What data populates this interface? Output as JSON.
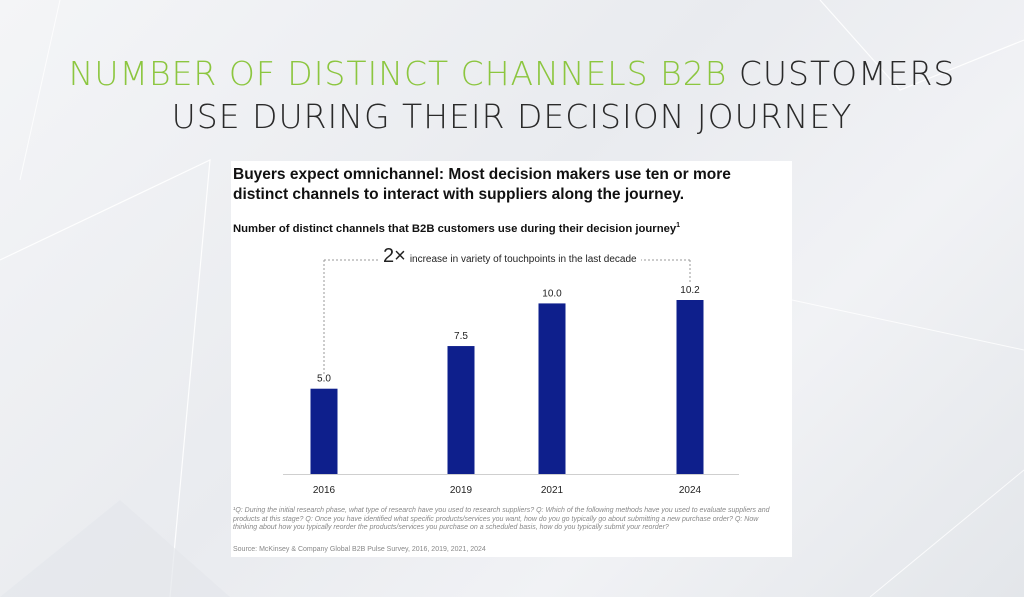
{
  "headline": {
    "highlight": "NUMBER OF DISTINCT CHANNELS B2B",
    "rest_line1": "CUSTOMERS",
    "line2": "USE DURING THEIR DECISION JOURNEY"
  },
  "colors": {
    "highlight": "#8cc63f",
    "bar": "#0e1f8c",
    "text": "#2a2a2a"
  },
  "panel": {
    "subtitle": "Buyers expect omnichannel: Most decision makers use ten or more distinct channels to interact with suppliers along the journey.",
    "chart_title": "Number of distinct channels that B2B customers use during their decision journey",
    "chart_title_footnote": "1",
    "bracket_big": "2×",
    "bracket_text": "increase in variety of touchpoints in the last decade",
    "footnote": "¹Q: During the initial research phase, what type of research have you used to research suppliers? Q: Which of the following methods have you used to evaluate suppliers and products at this stage? Q: Once you have identified what specific products/services you want, how do you go typically go about submitting a new purchase order? Q: Now thinking about how you typically reorder the products/services you purchase on a scheduled basis, how do you typically submit your reorder?",
    "source": "Source: McKinsey & Company Global B2B Pulse Survey, 2016, 2019, 2021, 2024"
  },
  "chart_data": {
    "type": "bar",
    "categories": [
      "2016",
      "2019",
      "2021",
      "2024"
    ],
    "values": [
      5.0,
      7.5,
      10.0,
      10.2
    ],
    "value_labels": [
      "5.0",
      "7.5",
      "10.0",
      "10.2"
    ],
    "title": "Number of distinct channels that B2B customers use during their decision journey",
    "xlabel": "",
    "ylabel": "",
    "ylim": [
      0,
      10.2
    ],
    "grid": false,
    "annotation": "2× increase in variety of touchpoints in the last decade"
  }
}
